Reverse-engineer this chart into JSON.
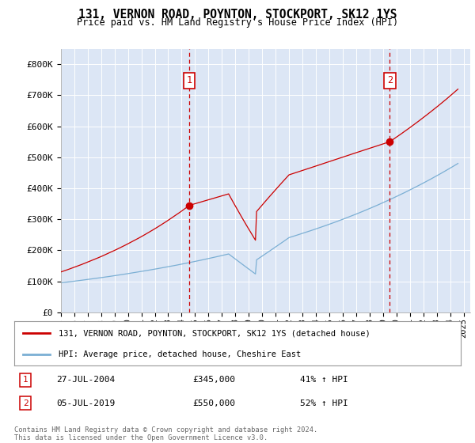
{
  "title": "131, VERNON ROAD, POYNTON, STOCKPORT, SK12 1YS",
  "subtitle": "Price paid vs. HM Land Registry's House Price Index (HPI)",
  "fig_bg_color": "#ffffff",
  "plot_bg_color": "#dce6f5",
  "red_line_color": "#cc0000",
  "blue_line_color": "#7bafd4",
  "annotation1": {
    "label": "1",
    "date": "27-JUL-2004",
    "price": "£345,000",
    "pct": "41% ↑ HPI",
    "x_year": 2004.57
  },
  "annotation2": {
    "label": "2",
    "date": "05-JUL-2019",
    "price": "£550,000",
    "pct": "52% ↑ HPI",
    "x_year": 2019.51
  },
  "legend_line1": "131, VERNON ROAD, POYNTON, STOCKPORT, SK12 1YS (detached house)",
  "legend_line2": "HPI: Average price, detached house, Cheshire East",
  "footer": "Contains HM Land Registry data © Crown copyright and database right 2024.\nThis data is licensed under the Open Government Licence v3.0.",
  "ylim": [
    0,
    850000
  ],
  "xlim_start": 1995.0,
  "xlim_end": 2025.5,
  "yticks": [
    0,
    100000,
    200000,
    300000,
    400000,
    500000,
    600000,
    700000,
    800000
  ],
  "ytick_labels": [
    "£0",
    "£100K",
    "£200K",
    "£300K",
    "£400K",
    "£500K",
    "£600K",
    "£700K",
    "£800K"
  ],
  "xticks": [
    1995,
    1996,
    1997,
    1998,
    1999,
    2000,
    2001,
    2002,
    2003,
    2004,
    2005,
    2006,
    2007,
    2008,
    2009,
    2010,
    2011,
    2012,
    2013,
    2014,
    2015,
    2016,
    2017,
    2018,
    2019,
    2020,
    2021,
    2022,
    2023,
    2024,
    2025
  ]
}
